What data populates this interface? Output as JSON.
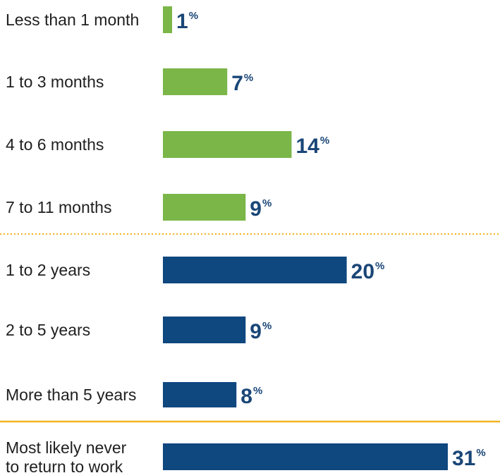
{
  "chart_data": {
    "type": "bar",
    "orientation": "horizontal",
    "categories": [
      "Less than 1 month",
      "1 to 3 months",
      "4 to 6 months",
      "7 to 11 months",
      "1 to 2 years",
      "2 to 5 years",
      "More than 5 years",
      "Most likely never to return to work"
    ],
    "values": [
      1,
      7,
      14,
      9,
      20,
      9,
      8,
      31
    ],
    "value_suffix": "%",
    "title": "",
    "xlabel": "",
    "ylabel": "",
    "xlim": [
      0,
      31
    ],
    "grid": false,
    "legend": "none",
    "colors": {
      "under_one_year": "#7ab648",
      "one_year_or_more": "#0f477f",
      "value_text": "#1a4677",
      "dotted_divider": "#f2b320",
      "solid_divider": "#f2b320"
    }
  }
}
